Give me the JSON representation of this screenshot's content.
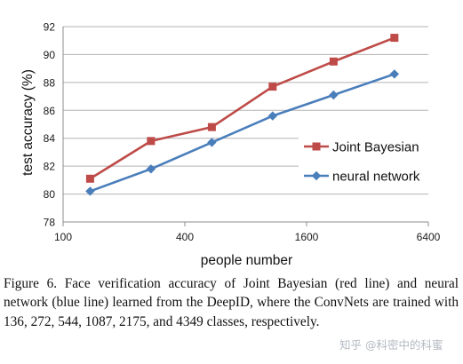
{
  "chart_data": {
    "type": "line",
    "xlabel": "people number",
    "ylabel": "test accuracy (%)",
    "x_scale": "log2",
    "xlim": [
      100,
      6400
    ],
    "ylim": [
      78,
      92
    ],
    "xticks": [
      100,
      400,
      1600,
      6400
    ],
    "xtick_labels": [
      "100",
      "400",
      "1600",
      "6400"
    ],
    "yticks": [
      78,
      80,
      82,
      84,
      86,
      88,
      90,
      92
    ],
    "ytick_labels": [
      "78",
      "80",
      "82",
      "84",
      "86",
      "88",
      "90",
      "92"
    ],
    "grid": "horizontal",
    "legend_position": "lower-right",
    "x": [
      136,
      272,
      544,
      1087,
      2175,
      4349
    ],
    "series": [
      {
        "name": "Joint Bayesian",
        "values": [
          81.1,
          83.8,
          84.8,
          87.7,
          89.5,
          91.2
        ],
        "color": "#be4b48",
        "marker": "square"
      },
      {
        "name": "neural network",
        "values": [
          80.2,
          81.8,
          83.7,
          85.6,
          87.1,
          88.6
        ],
        "color": "#4a7ebb",
        "marker": "diamond"
      }
    ]
  },
  "caption": "Figure 6. Face verification accuracy of Joint Bayesian (red line) and neural network (blue line) learned from the DeepID, where the ConvNets are trained with 136, 272, 544, 1087, 2175, and 4349 classes, respectively.",
  "watermark": "知乎 @科密中的科蜜"
}
